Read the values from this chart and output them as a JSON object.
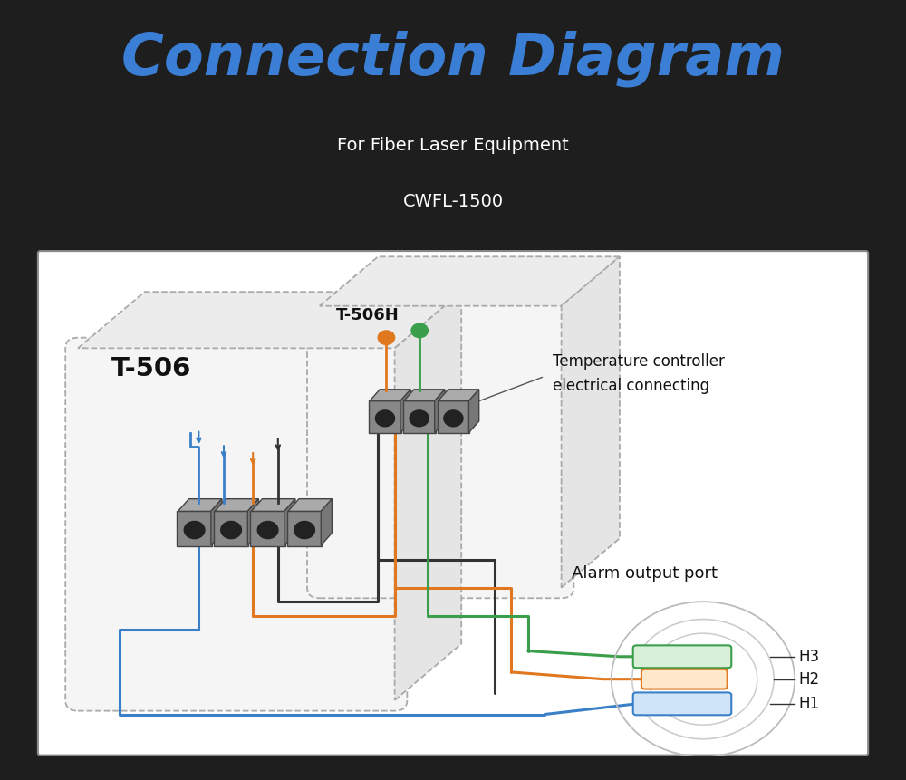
{
  "bg_color": "#1e1e1e",
  "title": "Connection Diagram",
  "title_color": "#3a7fd5",
  "subtitle1": "For Fiber Laser Equipment",
  "subtitle2": "CWFL-1500",
  "subtitle_color": "#ffffff",
  "diagram_bg": "#ffffff",
  "wire_green": "#3a9e4a",
  "wire_orange": "#e07820",
  "wire_blue": "#3a80c8",
  "wire_black": "#333333",
  "t506_label": "T-506",
  "t506h_label": "T-506H",
  "temp_ctrl_label1": "Temperature controller",
  "temp_ctrl_label2": "electrical connecting",
  "alarm_label": "Alarm output port",
  "h1_label": "H1",
  "h2_label": "H2",
  "h3_label": "H3"
}
